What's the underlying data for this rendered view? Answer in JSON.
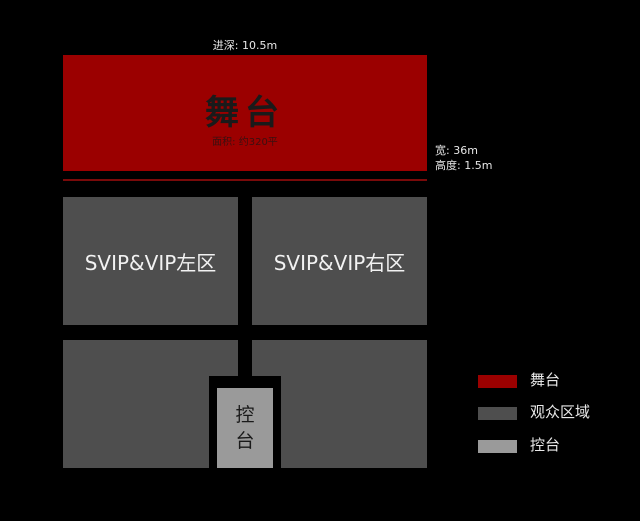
{
  "stage": {
    "title": "舞台",
    "area": "面积: 约320平",
    "depth": "进深: 10.5m",
    "width": "宽: 36m",
    "height": "高度: 1.5m"
  },
  "zones": {
    "left": "SVIP&VIP左区",
    "right": "SVIP&VIP右区",
    "console": "控台"
  },
  "legend": [
    {
      "label": "舞台",
      "color": "#9b0000"
    },
    {
      "label": "观众区域",
      "color": "#4e4e4e"
    },
    {
      "label": "控台",
      "color": "#9a9a9a"
    }
  ]
}
